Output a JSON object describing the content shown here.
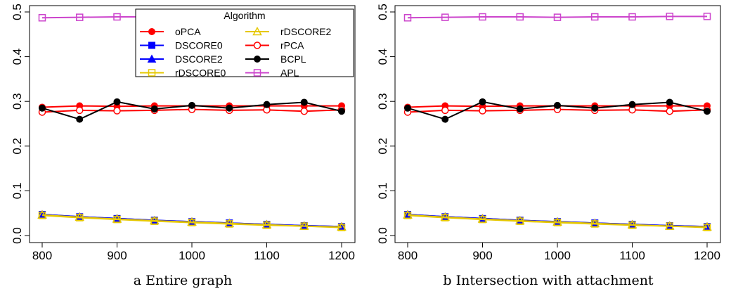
{
  "chart_data": [
    {
      "type": "line",
      "caption": "a Entire graph",
      "x": [
        800,
        850,
        900,
        950,
        1000,
        1050,
        1100,
        1150,
        1200
      ],
      "xlim": [
        800,
        1200
      ],
      "xticks": [
        "800",
        "900",
        "1000",
        "1100",
        "1200"
      ],
      "ylim": [
        0,
        0.5
      ],
      "yticks": [
        "0.0",
        "0.1",
        "0.2",
        "0.3",
        "0.4",
        "0.5"
      ],
      "legend": {
        "title": "Algorithm",
        "placement": "top-right"
      },
      "series": [
        {
          "name": "oPCA",
          "color": "#ff0000",
          "marker": "filled-circle",
          "values": [
            0.287,
            0.29,
            0.289,
            0.29,
            0.29,
            0.29,
            0.29,
            0.29,
            0.29
          ]
        },
        {
          "name": "DSCORE0",
          "color": "#0000ff",
          "marker": "filled-square",
          "values": [
            0.047,
            0.042,
            0.038,
            0.034,
            0.031,
            0.028,
            0.025,
            0.022,
            0.02
          ]
        },
        {
          "name": "DSCORE2",
          "color": "#0000ff",
          "marker": "filled-triangle",
          "values": [
            0.047,
            0.042,
            0.038,
            0.034,
            0.031,
            0.028,
            0.025,
            0.022,
            0.02
          ]
        },
        {
          "name": "rDSCORE0",
          "color": "#e6c800",
          "marker": "open-square",
          "values": [
            0.045,
            0.04,
            0.036,
            0.032,
            0.029,
            0.026,
            0.023,
            0.021,
            0.018
          ]
        },
        {
          "name": "rDSCORE2",
          "color": "#e6c800",
          "marker": "open-triangle",
          "values": [
            0.046,
            0.041,
            0.037,
            0.033,
            0.03,
            0.027,
            0.024,
            0.021,
            0.019
          ]
        },
        {
          "name": "rPCA",
          "color": "#ff0000",
          "marker": "open-circle",
          "values": [
            0.276,
            0.28,
            0.279,
            0.28,
            0.282,
            0.28,
            0.281,
            0.278,
            0.281
          ]
        },
        {
          "name": "BCPL",
          "color": "#000000",
          "marker": "filled-circle",
          "values": [
            0.285,
            0.26,
            0.299,
            0.283,
            0.291,
            0.285,
            0.293,
            0.298,
            0.278
          ]
        },
        {
          "name": "APL",
          "color": "#cc44cc",
          "marker": "open-square",
          "values": [
            0.487,
            0.488,
            0.489,
            0.489,
            0.488,
            0.489,
            0.489,
            0.49,
            0.49
          ]
        }
      ]
    },
    {
      "type": "line",
      "caption": "b Intersection with attachment",
      "x": [
        800,
        850,
        900,
        950,
        1000,
        1050,
        1100,
        1150,
        1200
      ],
      "xlim": [
        800,
        1200
      ],
      "xticks": [
        "800",
        "900",
        "1000",
        "1100",
        "1200"
      ],
      "ylim": [
        0,
        0.5
      ],
      "yticks": [
        "0.0",
        "0.1",
        "0.2",
        "0.3",
        "0.4",
        "0.5"
      ],
      "series": [
        {
          "color": "#ff0000",
          "marker": "filled-circle",
          "values": [
            0.287,
            0.29,
            0.289,
            0.29,
            0.29,
            0.29,
            0.29,
            0.29,
            0.29
          ]
        },
        {
          "color": "#0000ff",
          "marker": "filled-square",
          "values": [
            0.047,
            0.042,
            0.038,
            0.034,
            0.031,
            0.028,
            0.025,
            0.022,
            0.02
          ]
        },
        {
          "color": "#0000ff",
          "marker": "filled-triangle",
          "values": [
            0.047,
            0.042,
            0.038,
            0.034,
            0.031,
            0.028,
            0.025,
            0.022,
            0.02
          ]
        },
        {
          "color": "#e6c800",
          "marker": "open-square",
          "values": [
            0.045,
            0.04,
            0.036,
            0.032,
            0.029,
            0.026,
            0.023,
            0.021,
            0.018
          ]
        },
        {
          "color": "#e6c800",
          "marker": "open-triangle",
          "values": [
            0.046,
            0.041,
            0.037,
            0.033,
            0.03,
            0.027,
            0.024,
            0.021,
            0.019
          ]
        },
        {
          "color": "#ff0000",
          "marker": "open-circle",
          "values": [
            0.276,
            0.28,
            0.279,
            0.28,
            0.282,
            0.28,
            0.281,
            0.278,
            0.281
          ]
        },
        {
          "color": "#000000",
          "marker": "filled-circle",
          "values": [
            0.285,
            0.26,
            0.299,
            0.283,
            0.291,
            0.285,
            0.293,
            0.298,
            0.278
          ]
        },
        {
          "color": "#cc44cc",
          "marker": "open-square",
          "values": [
            0.487,
            0.488,
            0.489,
            0.489,
            0.488,
            0.489,
            0.489,
            0.49,
            0.49
          ]
        }
      ]
    }
  ]
}
